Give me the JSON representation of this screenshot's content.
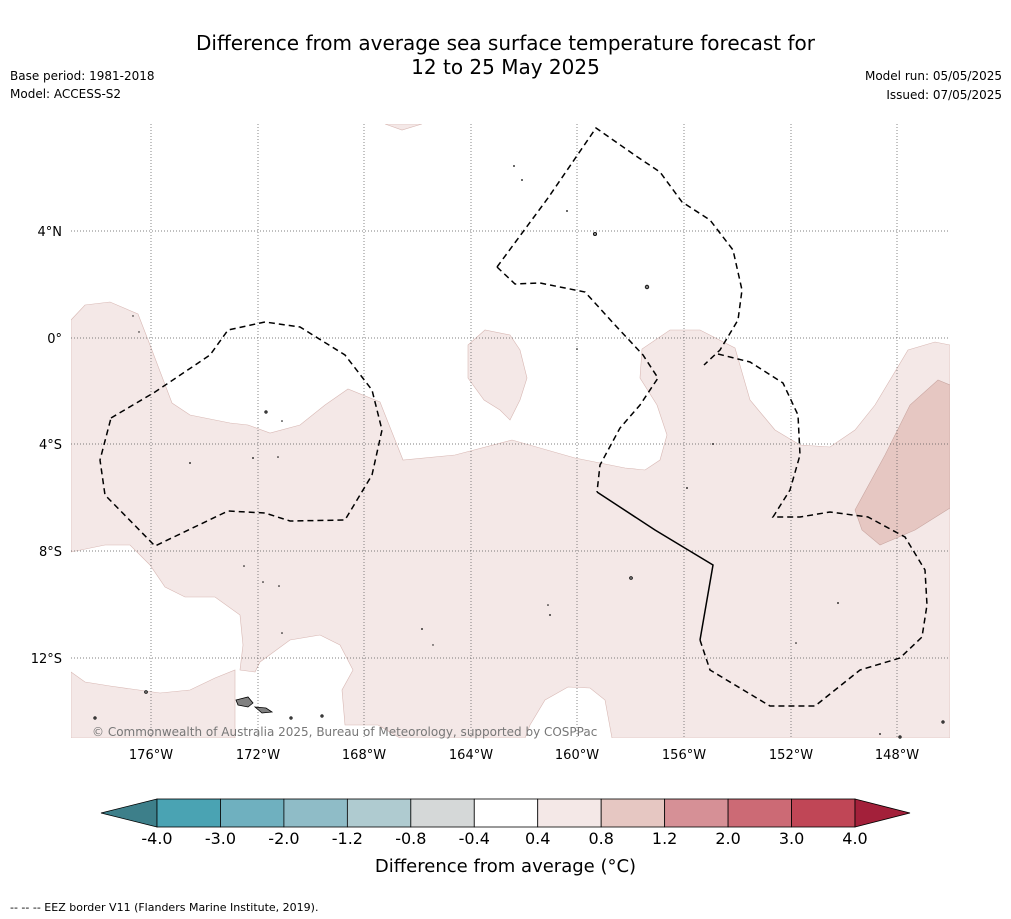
{
  "header": {
    "title_line1": "Difference from average sea surface temperature forecast for",
    "title_line2": "12 to 25 May 2025",
    "base_period": "Base period: 1981-2018",
    "model": "Model: ACCESS-S2",
    "model_run": "Model run: 05/05/2025",
    "issued": "Issued: 07/05/2025"
  },
  "map": {
    "lat_labels": [
      "4°N",
      "0°",
      "4°S",
      "8°S",
      "12°S"
    ],
    "lon_labels": [
      "176°W",
      "172°W",
      "168°W",
      "164°W",
      "160°W",
      "156°W",
      "152°W",
      "148°W"
    ],
    "copyright": "© Commonwealth of Australia 2025, Bureau of Meteorology, supported by COSPPac",
    "gridlines": true,
    "colors": {
      "anomaly_0_4_to_0_8": "#f4e8e7",
      "anomaly_0_8_to_1_2": "#e6c7c2",
      "eez_border": "#000000",
      "land": "#808080"
    }
  },
  "colorbar": {
    "ticks": [
      "-4.0",
      "-3.0",
      "-2.0",
      "-1.2",
      "-0.8",
      "-0.4",
      "0.4",
      "0.8",
      "1.2",
      "2.0",
      "3.0",
      "4.0"
    ],
    "colors": [
      "#3d7f8a",
      "#4aa3b3",
      "#6fb0bf",
      "#8fbcc7",
      "#afcbd0",
      "#d5d8d8",
      "#ffffff",
      "#f4e8e7",
      "#e6c7c2",
      "#d69096",
      "#cc6a75",
      "#c04656",
      "#a3203a"
    ],
    "label": "Difference from average (°C)"
  },
  "footnote": "--  --  -- EEZ border V11 (Flanders Marine Institute, 2019)."
}
